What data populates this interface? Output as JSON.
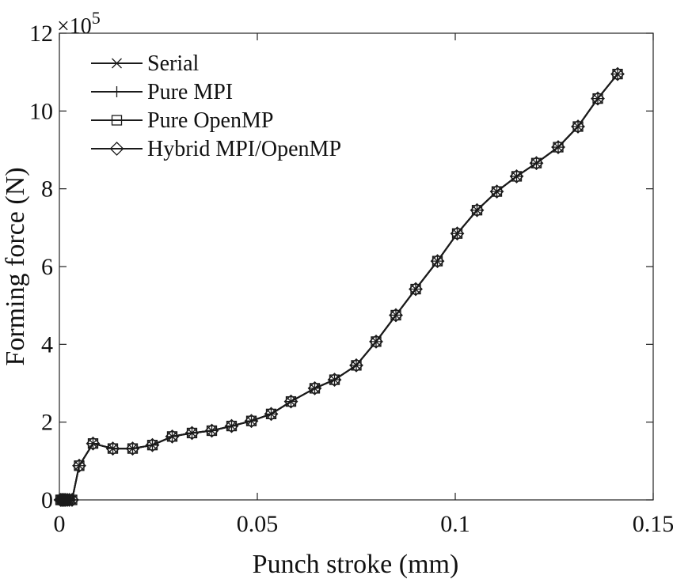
{
  "chart_data": {
    "type": "line",
    "xlabel": "Punch stroke (mm)",
    "ylabel": "Forming force (N)",
    "y_exponent_label": "×10",
    "y_exponent_power": "5",
    "xlim": [
      0,
      0.15
    ],
    "ylim": [
      0,
      12
    ],
    "xticks": [
      0,
      0.05,
      0.1,
      0.15
    ],
    "xtick_labels": [
      "0",
      "0.05",
      "0.1",
      "0.15"
    ],
    "yticks": [
      0,
      2,
      4,
      6,
      8,
      10,
      12
    ],
    "ytick_labels": [
      "0",
      "2",
      "4",
      "6",
      "8",
      "10",
      "12"
    ],
    "grid": false,
    "legend_position": "top-left",
    "x": [
      0.0003,
      0.0006,
      0.0009,
      0.0012,
      0.0015,
      0.002,
      0.0025,
      0.0032,
      0.005,
      0.0085,
      0.0135,
      0.0185,
      0.0235,
      0.0285,
      0.0335,
      0.0385,
      0.0435,
      0.0485,
      0.0535,
      0.0585,
      0.0645,
      0.0695,
      0.075,
      0.08,
      0.085,
      0.09,
      0.0955,
      0.1005,
      0.1055,
      0.1105,
      0.1155,
      0.1205,
      0.126,
      0.131,
      0.136,
      0.141
    ],
    "series": [
      {
        "name": "Serial",
        "marker": "x",
        "values": [
          0,
          0,
          0,
          0,
          0,
          0,
          0,
          0,
          0.88,
          1.45,
          1.32,
          1.32,
          1.41,
          1.63,
          1.72,
          1.78,
          1.9,
          2.03,
          2.21,
          2.53,
          2.87,
          3.09,
          3.46,
          4.07,
          4.75,
          5.42,
          6.14,
          6.85,
          7.45,
          7.93,
          8.32,
          8.66,
          9.07,
          9.6,
          10.32,
          10.95
        ]
      },
      {
        "name": "Pure MPI",
        "marker": "+",
        "values": [
          0,
          0,
          0,
          0,
          0,
          0,
          0,
          0,
          0.88,
          1.45,
          1.32,
          1.32,
          1.41,
          1.63,
          1.72,
          1.78,
          1.9,
          2.03,
          2.21,
          2.53,
          2.87,
          3.09,
          3.46,
          4.07,
          4.75,
          5.42,
          6.14,
          6.85,
          7.45,
          7.93,
          8.32,
          8.66,
          9.07,
          9.6,
          10.32,
          10.95
        ]
      },
      {
        "name": "Pure OpenMP",
        "marker": "square",
        "values": [
          0,
          0,
          0,
          0,
          0,
          0,
          0,
          0,
          0.88,
          1.45,
          1.32,
          1.32,
          1.41,
          1.63,
          1.72,
          1.78,
          1.9,
          2.03,
          2.21,
          2.53,
          2.87,
          3.09,
          3.46,
          4.07,
          4.75,
          5.42,
          6.14,
          6.85,
          7.45,
          7.93,
          8.32,
          8.66,
          9.07,
          9.6,
          10.32,
          10.95
        ]
      },
      {
        "name": "Hybrid MPI/OpenMP",
        "marker": "diamond",
        "values": [
          0,
          0,
          0,
          0,
          0,
          0,
          0,
          0,
          0.88,
          1.45,
          1.32,
          1.32,
          1.41,
          1.63,
          1.72,
          1.78,
          1.9,
          2.03,
          2.21,
          2.53,
          2.87,
          3.09,
          3.46,
          4.07,
          4.75,
          5.42,
          6.14,
          6.85,
          7.45,
          7.93,
          8.32,
          8.66,
          9.07,
          9.6,
          10.32,
          10.95
        ]
      }
    ],
    "colors": {
      "line": "#1a1a1a",
      "axis": "#222222",
      "background": "#ffffff"
    }
  }
}
